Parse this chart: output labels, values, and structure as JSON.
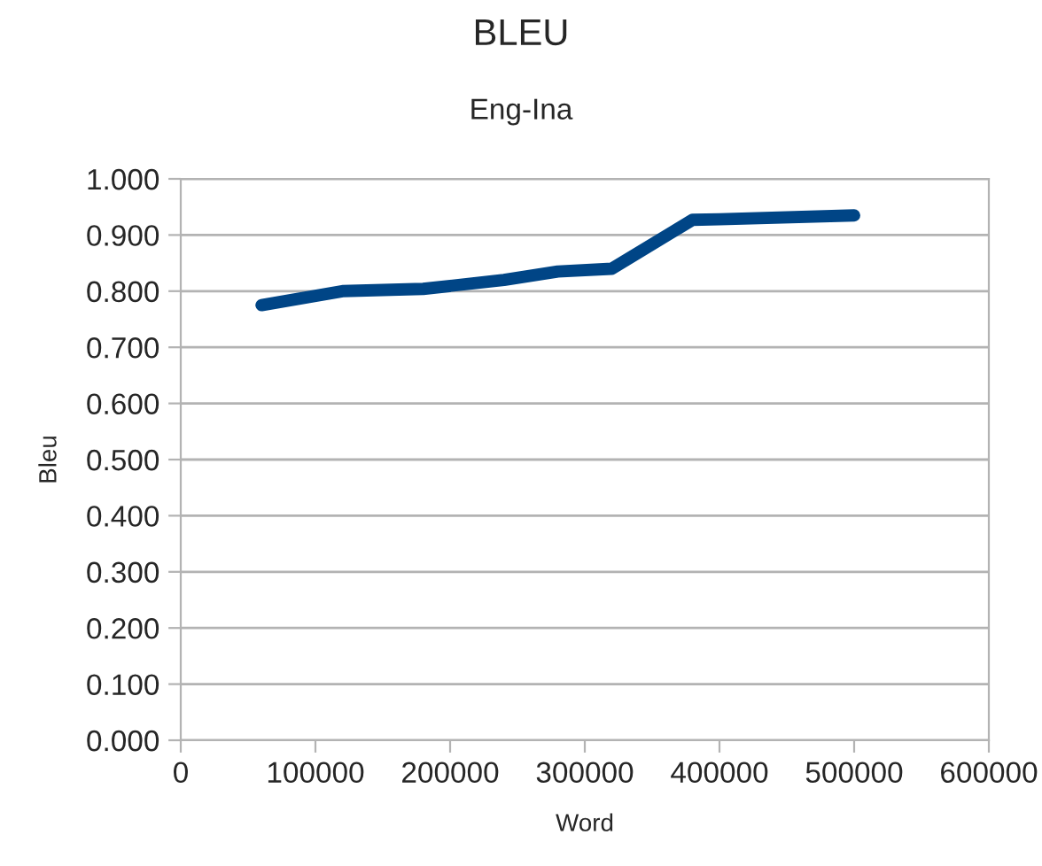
{
  "chart_data": {
    "type": "line",
    "title": "BLEU",
    "subtitle": "Eng-Ina",
    "xlabel": "Word",
    "ylabel": "Bleu",
    "x": [
      60000,
      120000,
      180000,
      240000,
      280000,
      320000,
      380000,
      400000,
      500000
    ],
    "series": [
      {
        "color": "#004586",
        "values": [
          0.775,
          0.8,
          0.804,
          0.82,
          0.835,
          0.84,
          0.927,
          0.928,
          0.935
        ]
      }
    ],
    "xlim": [
      0,
      600000
    ],
    "xticks": [
      0,
      100000,
      200000,
      300000,
      400000,
      500000,
      600000
    ],
    "ylim": [
      0,
      1
    ],
    "yticks": [
      {
        "value": 0,
        "label": "0.000"
      },
      {
        "value": 0.1,
        "label": "0.100"
      },
      {
        "value": 0.2,
        "label": "0.200"
      },
      {
        "value": 0.3,
        "label": "0.300"
      },
      {
        "value": 0.4,
        "label": "0.400"
      },
      {
        "value": 0.5,
        "label": "0.500"
      },
      {
        "value": 0.6,
        "label": "0.600"
      },
      {
        "value": 0.7,
        "label": "0.700"
      },
      {
        "value": 0.8,
        "label": "0.800"
      },
      {
        "value": 0.9,
        "label": "0.900"
      },
      {
        "value": 1,
        "label": "1.000"
      }
    ],
    "grid": "y",
    "legend": false,
    "marker": "none",
    "line_style": "solid"
  }
}
